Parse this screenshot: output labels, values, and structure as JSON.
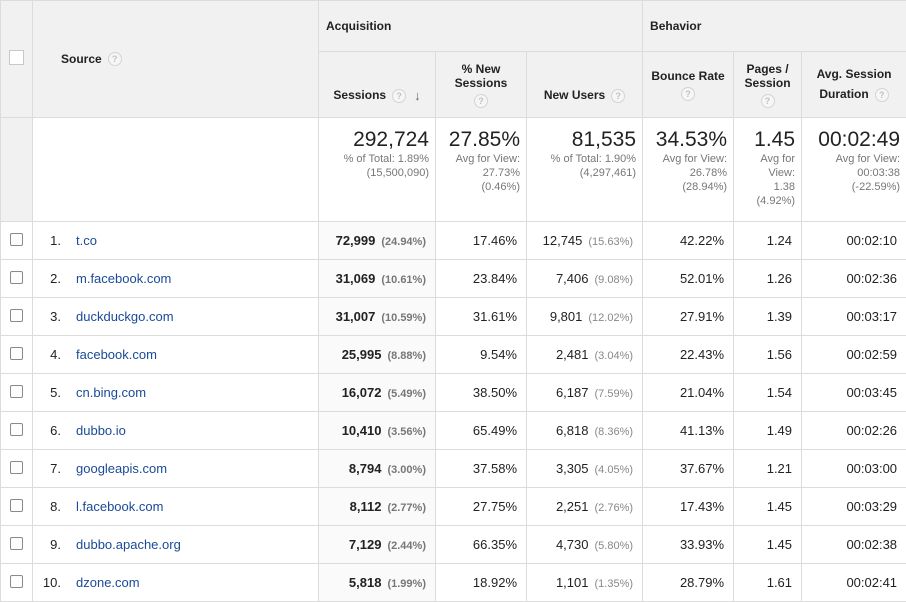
{
  "header": {
    "source": "Source",
    "acquisition": "Acquisition",
    "behavior": "Behavior",
    "sessions": "Sessions",
    "new_sessions_line1": "% New",
    "new_sessions_line2": "Sessions",
    "new_users": "New Users",
    "bounce_rate": "Bounce Rate",
    "pages_line1": "Pages /",
    "pages_line2": "Session",
    "duration_line1": "Avg. Session",
    "duration_line2": "Duration",
    "help": "?"
  },
  "totals": {
    "sessions": "292,724",
    "sessions_sub1": "% of Total: 1.89%",
    "sessions_sub2": "(15,500,090)",
    "new_sessions": "27.85%",
    "new_sessions_sub1": "Avg for View:",
    "new_sessions_sub2": "27.73%",
    "new_sessions_sub3": "(0.46%)",
    "new_users": "81,535",
    "new_users_sub1": "% of Total: 1.90%",
    "new_users_sub2": "(4,297,461)",
    "bounce_rate": "34.53%",
    "bounce_rate_sub1": "Avg for View:",
    "bounce_rate_sub2": "26.78%",
    "bounce_rate_sub3": "(28.94%)",
    "pages": "1.45",
    "pages_sub1": "Avg for",
    "pages_sub2": "View:",
    "pages_sub3": "1.38",
    "pages_sub4": "(4.92%)",
    "duration": "00:02:49",
    "duration_sub1": "Avg for View:",
    "duration_sub2": "00:03:38",
    "duration_sub3": "(-22.59%)"
  },
  "rows": [
    {
      "index": "1.",
      "source": "t.co",
      "sessions": "72,999",
      "sessions_pct": "(24.94%)",
      "new_sessions": "17.46%",
      "new_users": "12,745",
      "new_users_pct": "(15.63%)",
      "bounce_rate": "42.22%",
      "pages": "1.24",
      "duration": "00:02:10"
    },
    {
      "index": "2.",
      "source": "m.facebook.com",
      "sessions": "31,069",
      "sessions_pct": "(10.61%)",
      "new_sessions": "23.84%",
      "new_users": "7,406",
      "new_users_pct": "(9.08%)",
      "bounce_rate": "52.01%",
      "pages": "1.26",
      "duration": "00:02:36"
    },
    {
      "index": "3.",
      "source": "duckduckgo.com",
      "sessions": "31,007",
      "sessions_pct": "(10.59%)",
      "new_sessions": "31.61%",
      "new_users": "9,801",
      "new_users_pct": "(12.02%)",
      "bounce_rate": "27.91%",
      "pages": "1.39",
      "duration": "00:03:17"
    },
    {
      "index": "4.",
      "source": "facebook.com",
      "sessions": "25,995",
      "sessions_pct": "(8.88%)",
      "new_sessions": "9.54%",
      "new_users": "2,481",
      "new_users_pct": "(3.04%)",
      "bounce_rate": "22.43%",
      "pages": "1.56",
      "duration": "00:02:59"
    },
    {
      "index": "5.",
      "source": "cn.bing.com",
      "sessions": "16,072",
      "sessions_pct": "(5.49%)",
      "new_sessions": "38.50%",
      "new_users": "6,187",
      "new_users_pct": "(7.59%)",
      "bounce_rate": "21.04%",
      "pages": "1.54",
      "duration": "00:03:45"
    },
    {
      "index": "6.",
      "source": "dubbo.io",
      "sessions": "10,410",
      "sessions_pct": "(3.56%)",
      "new_sessions": "65.49%",
      "new_users": "6,818",
      "new_users_pct": "(8.36%)",
      "bounce_rate": "41.13%",
      "pages": "1.49",
      "duration": "00:02:26"
    },
    {
      "index": "7.",
      "source": "googleapis.com",
      "sessions": "8,794",
      "sessions_pct": "(3.00%)",
      "new_sessions": "37.58%",
      "new_users": "3,305",
      "new_users_pct": "(4.05%)",
      "bounce_rate": "37.67%",
      "pages": "1.21",
      "duration": "00:03:00"
    },
    {
      "index": "8.",
      "source": "l.facebook.com",
      "sessions": "8,112",
      "sessions_pct": "(2.77%)",
      "new_sessions": "27.75%",
      "new_users": "2,251",
      "new_users_pct": "(2.76%)",
      "bounce_rate": "17.43%",
      "pages": "1.45",
      "duration": "00:03:29"
    },
    {
      "index": "9.",
      "source": "dubbo.apache.org",
      "sessions": "7,129",
      "sessions_pct": "(2.44%)",
      "new_sessions": "66.35%",
      "new_users": "4,730",
      "new_users_pct": "(5.80%)",
      "bounce_rate": "33.93%",
      "pages": "1.45",
      "duration": "00:02:38"
    },
    {
      "index": "10.",
      "source": "dzone.com",
      "sessions": "5,818",
      "sessions_pct": "(1.99%)",
      "new_sessions": "18.92%",
      "new_users": "1,101",
      "new_users_pct": "(1.35%)",
      "bounce_rate": "28.79%",
      "pages": "1.61",
      "duration": "00:02:41"
    }
  ],
  "icons": {
    "help": "help-circle-icon",
    "sort": "arrow-down-icon",
    "checkbox": "checkbox-icon"
  },
  "colors": {
    "link": "#1a4a98",
    "header_bg": "#f1f1f1",
    "border": "#dcdcdc"
  }
}
